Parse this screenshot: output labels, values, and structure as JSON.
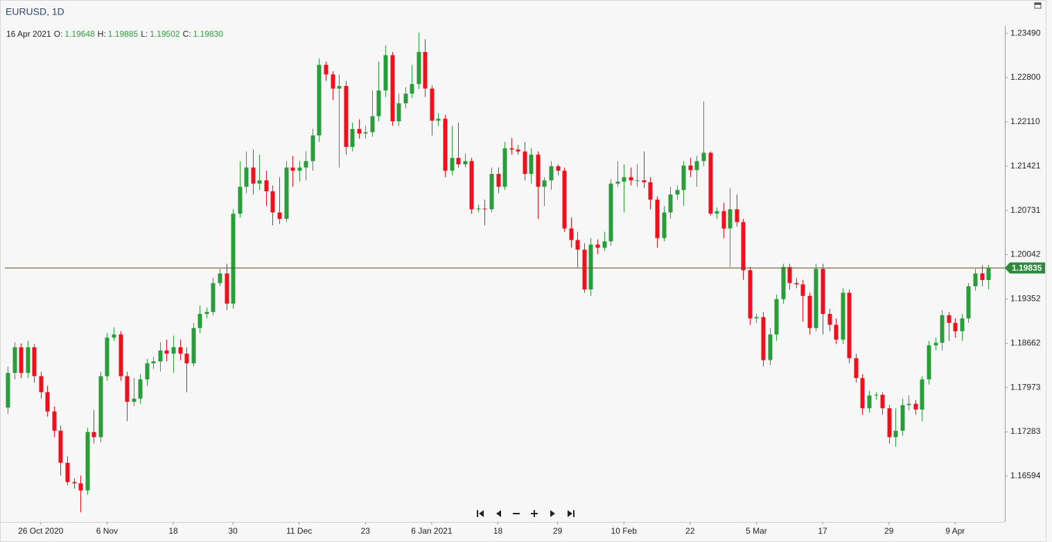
{
  "chart_data": {
    "type": "candlestick",
    "title": "EURUSD, 1D",
    "ohlc_labels": {
      "date": "16 Apr 2021",
      "open": "O:",
      "high": "H:",
      "low": "L:",
      "close": "C:"
    },
    "last_value_labels": [
      "1.19648",
      "1.19885",
      "1.19502",
      "1.19830"
    ],
    "last_price": 1.19835,
    "up_color": "#2a9d3b",
    "down_color": "#f20f1c",
    "last_price_color": "#2e8b3e",
    "last_price_line_color": "#6b5a2e",
    "ylim": [
      1.1588,
      1.2361
    ],
    "yticks": [
      {
        "value": 1.2349,
        "label": "1.23490"
      },
      {
        "value": 1.228,
        "label": "1.22800"
      },
      {
        "value": 1.2211,
        "label": "1.22110"
      },
      1.21421,
      1.20731,
      1.20042,
      1.19352,
      1.18662,
      1.17973,
      1.17283,
      1.16594
    ],
    "xlim": [
      -1.15,
      150.5
    ],
    "xticks": [
      {
        "value": 5,
        "label": "26 Oct 2020"
      },
      {
        "value": 15,
        "label": "6 Nov"
      },
      {
        "value": 25,
        "label": "18"
      },
      {
        "value": 34,
        "label": "30"
      },
      {
        "value": 44,
        "label": "11 Dec"
      },
      {
        "value": 54,
        "label": "23"
      },
      {
        "value": 64,
        "label": "6 Jan 2021"
      },
      {
        "value": 74,
        "label": "18"
      },
      {
        "value": 83,
        "label": "29"
      },
      {
        "value": 93,
        "label": "10 Feb"
      },
      {
        "value": 103,
        "label": "22"
      },
      {
        "value": 113,
        "label": "5 Mar"
      },
      {
        "value": 123,
        "label": "17"
      },
      {
        "value": 133,
        "label": "29"
      },
      {
        "value": 143,
        "label": "9 Apr"
      }
    ],
    "candles": [
      [
        1.1766,
        1.183,
        1.1756,
        1.182
      ],
      [
        1.182,
        1.1868,
        1.181,
        1.186
      ],
      [
        1.186,
        1.1866,
        1.1812,
        1.182
      ],
      [
        1.182,
        1.187,
        1.1812,
        1.186
      ],
      [
        1.186,
        1.1865,
        1.1805,
        1.1815
      ],
      [
        1.1815,
        1.1822,
        1.178,
        1.179
      ],
      [
        1.179,
        1.18,
        1.1752,
        1.176
      ],
      [
        1.176,
        1.1768,
        1.172,
        1.173
      ],
      [
        1.173,
        1.1738,
        1.166,
        1.168
      ],
      [
        1.168,
        1.169,
        1.1645,
        1.165
      ],
      [
        1.165,
        1.1656,
        1.164,
        1.1648
      ],
      [
        1.1648,
        1.166,
        1.1603,
        1.1637
      ],
      [
        1.1637,
        1.1735,
        1.163,
        1.1728
      ],
      [
        1.1728,
        1.1762,
        1.171,
        1.172
      ],
      [
        1.172,
        1.1822,
        1.1712,
        1.1815
      ],
      [
        1.1815,
        1.1882,
        1.1808,
        1.1875
      ],
      [
        1.1875,
        1.1891,
        1.187,
        1.188
      ],
      [
        1.188,
        1.1885,
        1.1808,
        1.1815
      ],
      [
        1.1815,
        1.1822,
        1.1745,
        1.1775
      ],
      [
        1.1775,
        1.1812,
        1.1768,
        1.178
      ],
      [
        1.178,
        1.1818,
        1.1772,
        1.181
      ],
      [
        1.181,
        1.1842,
        1.18,
        1.1835
      ],
      [
        1.1835,
        1.1845,
        1.1826,
        1.1838
      ],
      [
        1.1838,
        1.1868,
        1.1822,
        1.1855
      ],
      [
        1.1855,
        1.1872,
        1.1838,
        1.185
      ],
      [
        1.185,
        1.1878,
        1.182,
        1.186
      ],
      [
        1.186,
        1.1872,
        1.184,
        1.185
      ],
      [
        1.185,
        1.186,
        1.179,
        1.1835
      ],
      [
        1.1835,
        1.1898,
        1.183,
        1.189
      ],
      [
        1.189,
        1.1925,
        1.1882,
        1.1912
      ],
      [
        1.1912,
        1.1922,
        1.1905,
        1.1915
      ],
      [
        1.1915,
        1.1968,
        1.191,
        1.196
      ],
      [
        1.196,
        1.1982,
        1.1955,
        1.1975
      ],
      [
        1.1975,
        1.199,
        1.1918,
        1.1928
      ],
      [
        1.1928,
        1.2075,
        1.192,
        1.2068
      ],
      [
        1.2068,
        1.215,
        1.2062,
        1.211
      ],
      [
        1.211,
        1.2165,
        1.21,
        1.214
      ],
      [
        1.214,
        1.2168,
        1.2098,
        1.2115
      ],
      [
        1.2115,
        1.216,
        1.2105,
        1.212
      ],
      [
        1.212,
        1.2135,
        1.208,
        1.2103
      ],
      [
        1.2103,
        1.2112,
        1.205,
        1.207
      ],
      [
        1.207,
        1.2125,
        1.2052,
        1.206
      ],
      [
        1.206,
        1.215,
        1.2055,
        1.214
      ],
      [
        1.214,
        1.2158,
        1.211,
        1.2135
      ],
      [
        1.2135,
        1.215,
        1.2118,
        1.214
      ],
      [
        1.214,
        1.2165,
        1.212,
        1.215
      ],
      [
        1.215,
        1.22,
        1.2135,
        1.219
      ],
      [
        1.219,
        1.231,
        1.218,
        1.23
      ],
      [
        1.23,
        1.2305,
        1.2275,
        1.2285
      ],
      [
        1.2285,
        1.229,
        1.2245,
        1.2263
      ],
      [
        1.2263,
        1.2285,
        1.214,
        1.2267
      ],
      [
        1.2267,
        1.2275,
        1.216,
        1.2172
      ],
      [
        1.2172,
        1.221,
        1.2165,
        1.22
      ],
      [
        1.22,
        1.2215,
        1.2185,
        1.2193
      ],
      [
        1.2193,
        1.2205,
        1.2185,
        1.2195
      ],
      [
        1.2195,
        1.226,
        1.2188,
        1.222
      ],
      [
        1.222,
        1.2305,
        1.2212,
        1.226
      ],
      [
        1.226,
        1.233,
        1.225,
        1.2315
      ],
      [
        1.2315,
        1.232,
        1.2205,
        1.2212
      ],
      [
        1.2212,
        1.2255,
        1.2205,
        1.224
      ],
      [
        1.224,
        1.2265,
        1.2232,
        1.2255
      ],
      [
        1.2255,
        1.23,
        1.2248,
        1.227
      ],
      [
        1.227,
        1.235,
        1.2262,
        1.232
      ],
      [
        1.232,
        1.234,
        1.225,
        1.2263
      ],
      [
        1.2263,
        1.2268,
        1.219,
        1.2213
      ],
      [
        1.2213,
        1.2225,
        1.2205,
        1.2216
      ],
      [
        1.2216,
        1.2222,
        1.2125,
        1.2135
      ],
      [
        1.2135,
        1.2205,
        1.2128,
        1.2155
      ],
      [
        1.2155,
        1.221,
        1.214,
        1.2145
      ],
      [
        1.2145,
        1.2162,
        1.214,
        1.215
      ],
      [
        1.215,
        1.2155,
        1.2068,
        1.2075
      ],
      [
        1.2075,
        1.2082,
        1.207,
        1.2076
      ],
      [
        1.2076,
        1.209,
        1.205,
        1.2075
      ],
      [
        1.2075,
        1.214,
        1.207,
        1.213
      ],
      [
        1.213,
        1.214,
        1.21,
        1.211
      ],
      [
        1.211,
        1.218,
        1.2105,
        1.217
      ],
      [
        1.217,
        1.2186,
        1.216,
        1.2168
      ],
      [
        1.2168,
        1.2175,
        1.216,
        1.2165
      ],
      [
        1.2165,
        1.218,
        1.212,
        1.213
      ],
      [
        1.213,
        1.217,
        1.2115,
        1.216
      ],
      [
        1.216,
        1.2165,
        1.206,
        1.211
      ],
      [
        1.211,
        1.2125,
        1.208,
        1.212
      ],
      [
        1.212,
        1.215,
        1.2105,
        1.2142
      ],
      [
        1.2142,
        1.2145,
        1.2128,
        1.2135
      ],
      [
        1.2135,
        1.214,
        1.204,
        1.2045
      ],
      [
        1.2045,
        1.2062,
        1.2015,
        1.2027
      ],
      [
        1.2027,
        1.204,
        1.1985,
        1.2012
      ],
      [
        1.2012,
        1.2022,
        1.1945,
        1.195
      ],
      [
        1.195,
        1.203,
        1.194,
        1.202
      ],
      [
        1.202,
        1.2028,
        1.2005,
        1.2015
      ],
      [
        1.2015,
        1.204,
        1.201,
        1.2025
      ],
      [
        1.2025,
        1.2122,
        1.2018,
        1.2115
      ],
      [
        1.2115,
        1.215,
        1.211,
        1.2118
      ],
      [
        1.2118,
        1.2145,
        1.207,
        1.2125
      ],
      [
        1.2125,
        1.214,
        1.2112,
        1.212
      ],
      [
        1.212,
        1.2145,
        1.211,
        1.212
      ],
      [
        1.212,
        1.2165,
        1.2108,
        1.2117
      ],
      [
        1.2117,
        1.2125,
        1.2075,
        1.209
      ],
      [
        1.209,
        1.2095,
        1.2015,
        1.203
      ],
      [
        1.203,
        1.208,
        1.2025,
        1.207
      ],
      [
        1.207,
        1.211,
        1.206,
        1.2098
      ],
      [
        1.2098,
        1.2112,
        1.209,
        1.2105
      ],
      [
        1.2105,
        1.215,
        1.208,
        1.2143
      ],
      [
        1.2143,
        1.2155,
        1.2125,
        1.2136
      ],
      [
        1.2136,
        1.2158,
        1.211,
        1.215
      ],
      [
        1.215,
        1.2243,
        1.2142,
        1.2163
      ],
      [
        1.2163,
        1.2165,
        1.2065,
        1.2068
      ],
      [
        1.2068,
        1.2078,
        1.206,
        1.2072
      ],
      [
        1.2072,
        1.2085,
        1.203,
        1.2045
      ],
      [
        1.2045,
        1.2108,
        1.1985,
        1.2075
      ],
      [
        1.2075,
        1.2098,
        1.2048,
        1.2055
      ],
      [
        1.2055,
        1.206,
        1.1965,
        1.198
      ],
      [
        1.198,
        1.1985,
        1.1895,
        1.1905
      ],
      [
        1.1905,
        1.1912,
        1.1898,
        1.1907
      ],
      [
        1.1907,
        1.1915,
        1.183,
        1.184
      ],
      [
        1.184,
        1.189,
        1.1832,
        1.188
      ],
      [
        1.188,
        1.1942,
        1.187,
        1.1935
      ],
      [
        1.1935,
        1.199,
        1.1928,
        1.1985
      ],
      [
        1.1985,
        1.199,
        1.195,
        1.196
      ],
      [
        1.196,
        1.1968,
        1.1952,
        1.1958
      ],
      [
        1.1958,
        1.1965,
        1.19,
        1.194
      ],
      [
        1.194,
        1.1945,
        1.188,
        1.189
      ],
      [
        1.189,
        1.199,
        1.1885,
        1.1982
      ],
      [
        1.1982,
        1.199,
        1.188,
        1.1912
      ],
      [
        1.1912,
        1.192,
        1.1885,
        1.1895
      ],
      [
        1.1895,
        1.1905,
        1.1865,
        1.1872
      ],
      [
        1.1872,
        1.1952,
        1.1865,
        1.1945
      ],
      [
        1.1945,
        1.195,
        1.1835,
        1.1843
      ],
      [
        1.1843,
        1.185,
        1.1805,
        1.1812
      ],
      [
        1.1812,
        1.1818,
        1.1755,
        1.1765
      ],
      [
        1.1765,
        1.1792,
        1.1758,
        1.1785
      ],
      [
        1.1785,
        1.179,
        1.1778,
        1.1786
      ],
      [
        1.1786,
        1.179,
        1.1755,
        1.1765
      ],
      [
        1.1765,
        1.177,
        1.171,
        1.172
      ],
      [
        1.172,
        1.1765,
        1.1705,
        1.173
      ],
      [
        1.173,
        1.178,
        1.1722,
        1.177
      ],
      [
        1.177,
        1.1785,
        1.1762,
        1.1772
      ],
      [
        1.1772,
        1.1778,
        1.1755,
        1.1763
      ],
      [
        1.1763,
        1.1815,
        1.1745,
        1.181
      ],
      [
        1.181,
        1.187,
        1.1802,
        1.1863
      ],
      [
        1.1863,
        1.1875,
        1.1855,
        1.1867
      ],
      [
        1.1867,
        1.1918,
        1.1855,
        1.191
      ],
      [
        1.191,
        1.1915,
        1.187,
        1.1898
      ],
      [
        1.1898,
        1.1905,
        1.1875,
        1.1885
      ],
      [
        1.1885,
        1.1912,
        1.187,
        1.1905
      ],
      [
        1.1905,
        1.196,
        1.1898,
        1.1955
      ],
      [
        1.1955,
        1.1982,
        1.1948,
        1.1975
      ],
      [
        1.1975,
        1.1988,
        1.1955,
        1.19648
      ],
      [
        1.19648,
        1.19885,
        1.19502,
        1.1983
      ]
    ]
  }
}
